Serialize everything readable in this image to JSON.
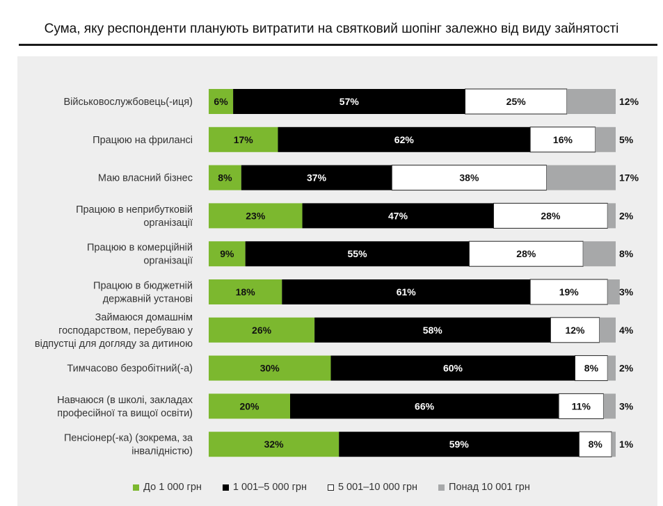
{
  "chart_data": {
    "type": "bar",
    "orientation": "horizontal",
    "stacked": true,
    "percent": true,
    "title": "Сума, яку респонденти планують витратити на святковий шопінг залежно від виду зайнятості",
    "categories": [
      "Військовослужбовець(-иця)",
      "Працюю на фрилансі",
      "Маю власний бізнес",
      "Працюю в неприбутковій організації",
      "Працюю в комерційній організації",
      "Працюю в бюджетній державній установі",
      "Займаюся домашнім господарством, перебуваю у відпустці для догляду за дитиною",
      "Тимчасово безробітний(-а)",
      "Навчаюся (в школі, закладах професійної та вищої освіти)",
      "Пенсіонер(-ка) (зокрема, за інвалідністю)"
    ],
    "category_lines": [
      [
        "Військовослужбовець(-иця)"
      ],
      [
        "Працюю на фрилансі"
      ],
      [
        "Маю власний бізнес"
      ],
      [
        "Працюю в неприбутковій",
        "організації"
      ],
      [
        "Працюю в комерційній",
        "організації"
      ],
      [
        "Працюю в бюджетній",
        "державній установі"
      ],
      [
        "Займаюся домашнім",
        "господарством, перебуваю у",
        "відпустці для догляду за дитиною"
      ],
      [
        "Тимчасово безробітний(-а)"
      ],
      [
        "Навчаюся (в школі, закладах",
        "професійної та вищої освіти)"
      ],
      [
        "Пенсіонер(-ка) (зокрема, за",
        "інвалідністю)"
      ]
    ],
    "series": [
      {
        "name": "До 1 000 грн",
        "color": "#7cb82f",
        "values": [
          6,
          17,
          8,
          23,
          9,
          18,
          26,
          30,
          20,
          32
        ]
      },
      {
        "name": "1 001–5 000 грн",
        "color": "#000000",
        "values": [
          57,
          62,
          37,
          47,
          55,
          61,
          58,
          60,
          66,
          59
        ]
      },
      {
        "name": "5 001–10 000 грн",
        "color": "#ffffff",
        "values": [
          25,
          16,
          38,
          28,
          28,
          19,
          12,
          8,
          11,
          8
        ]
      },
      {
        "name": "Понад 10 001 грн",
        "color": "#a7a8a9",
        "values": [
          12,
          5,
          17,
          2,
          8,
          3,
          4,
          2,
          3,
          1
        ]
      }
    ],
    "value_suffix": "%",
    "legend_position": "bottom",
    "grid": false
  }
}
